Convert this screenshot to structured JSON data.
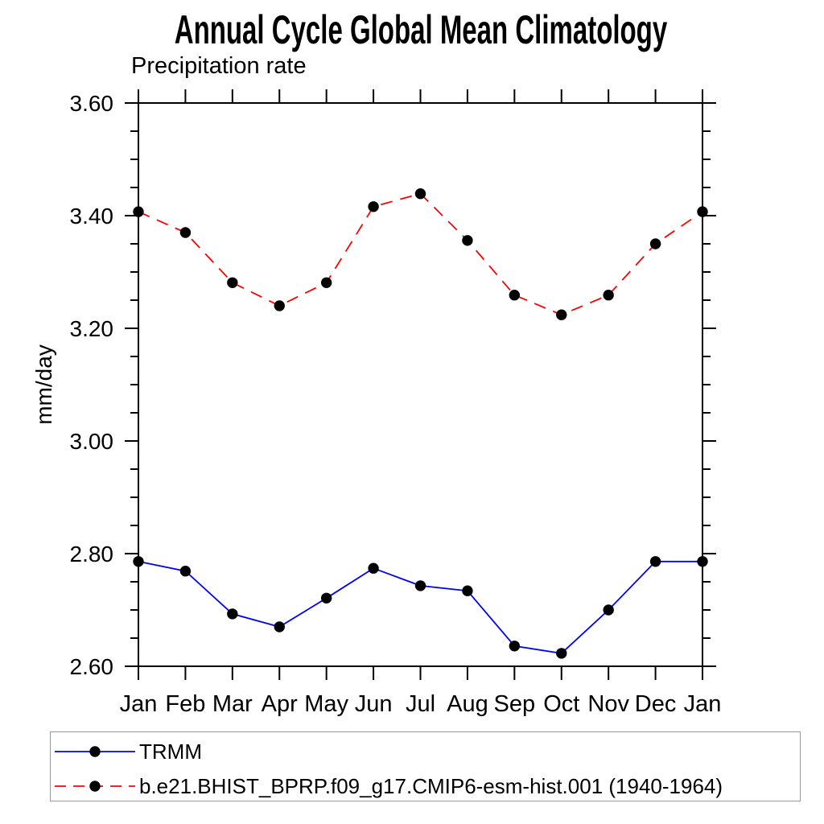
{
  "chart_data": {
    "type": "line",
    "title": "Annual Cycle Global Mean Climatology",
    "subtitle": "Precipitation rate",
    "ylabel": "mm/day",
    "xlabel": "",
    "ylim": [
      2.6,
      3.6
    ],
    "y_major_step": 0.2,
    "y_minor_step": 0.05,
    "y_tick_labels": [
      "2.60",
      "2.80",
      "3.00",
      "3.20",
      "3.40",
      "3.60"
    ],
    "categories": [
      "Jan",
      "Feb",
      "Mar",
      "Apr",
      "May",
      "Jun",
      "Jul",
      "Aug",
      "Sep",
      "Oct",
      "Nov",
      "Dec",
      "Jan"
    ],
    "grid": false,
    "legend_position": "bottom-left-box",
    "axis_color": "#000000",
    "series": [
      {
        "name": "TRMM",
        "color": "#0000ff",
        "line_style": "solid",
        "marker": "filled-circle",
        "marker_color": "#000000",
        "values": [
          2.786,
          2.769,
          2.693,
          2.67,
          2.721,
          2.774,
          2.743,
          2.734,
          2.636,
          2.623,
          2.7,
          2.786,
          2.786
        ]
      },
      {
        "name": "b.e21.BHIST_BPRP.f09_g17.CMIP6-esm-hist.001 (1940-1964)",
        "color": "#ff0000",
        "line_style": "dashed",
        "marker": "filled-circle",
        "marker_color": "#000000",
        "values": [
          3.407,
          3.37,
          3.281,
          3.24,
          3.281,
          3.416,
          3.439,
          3.356,
          3.259,
          3.224,
          3.259,
          3.35,
          3.407
        ]
      }
    ]
  }
}
